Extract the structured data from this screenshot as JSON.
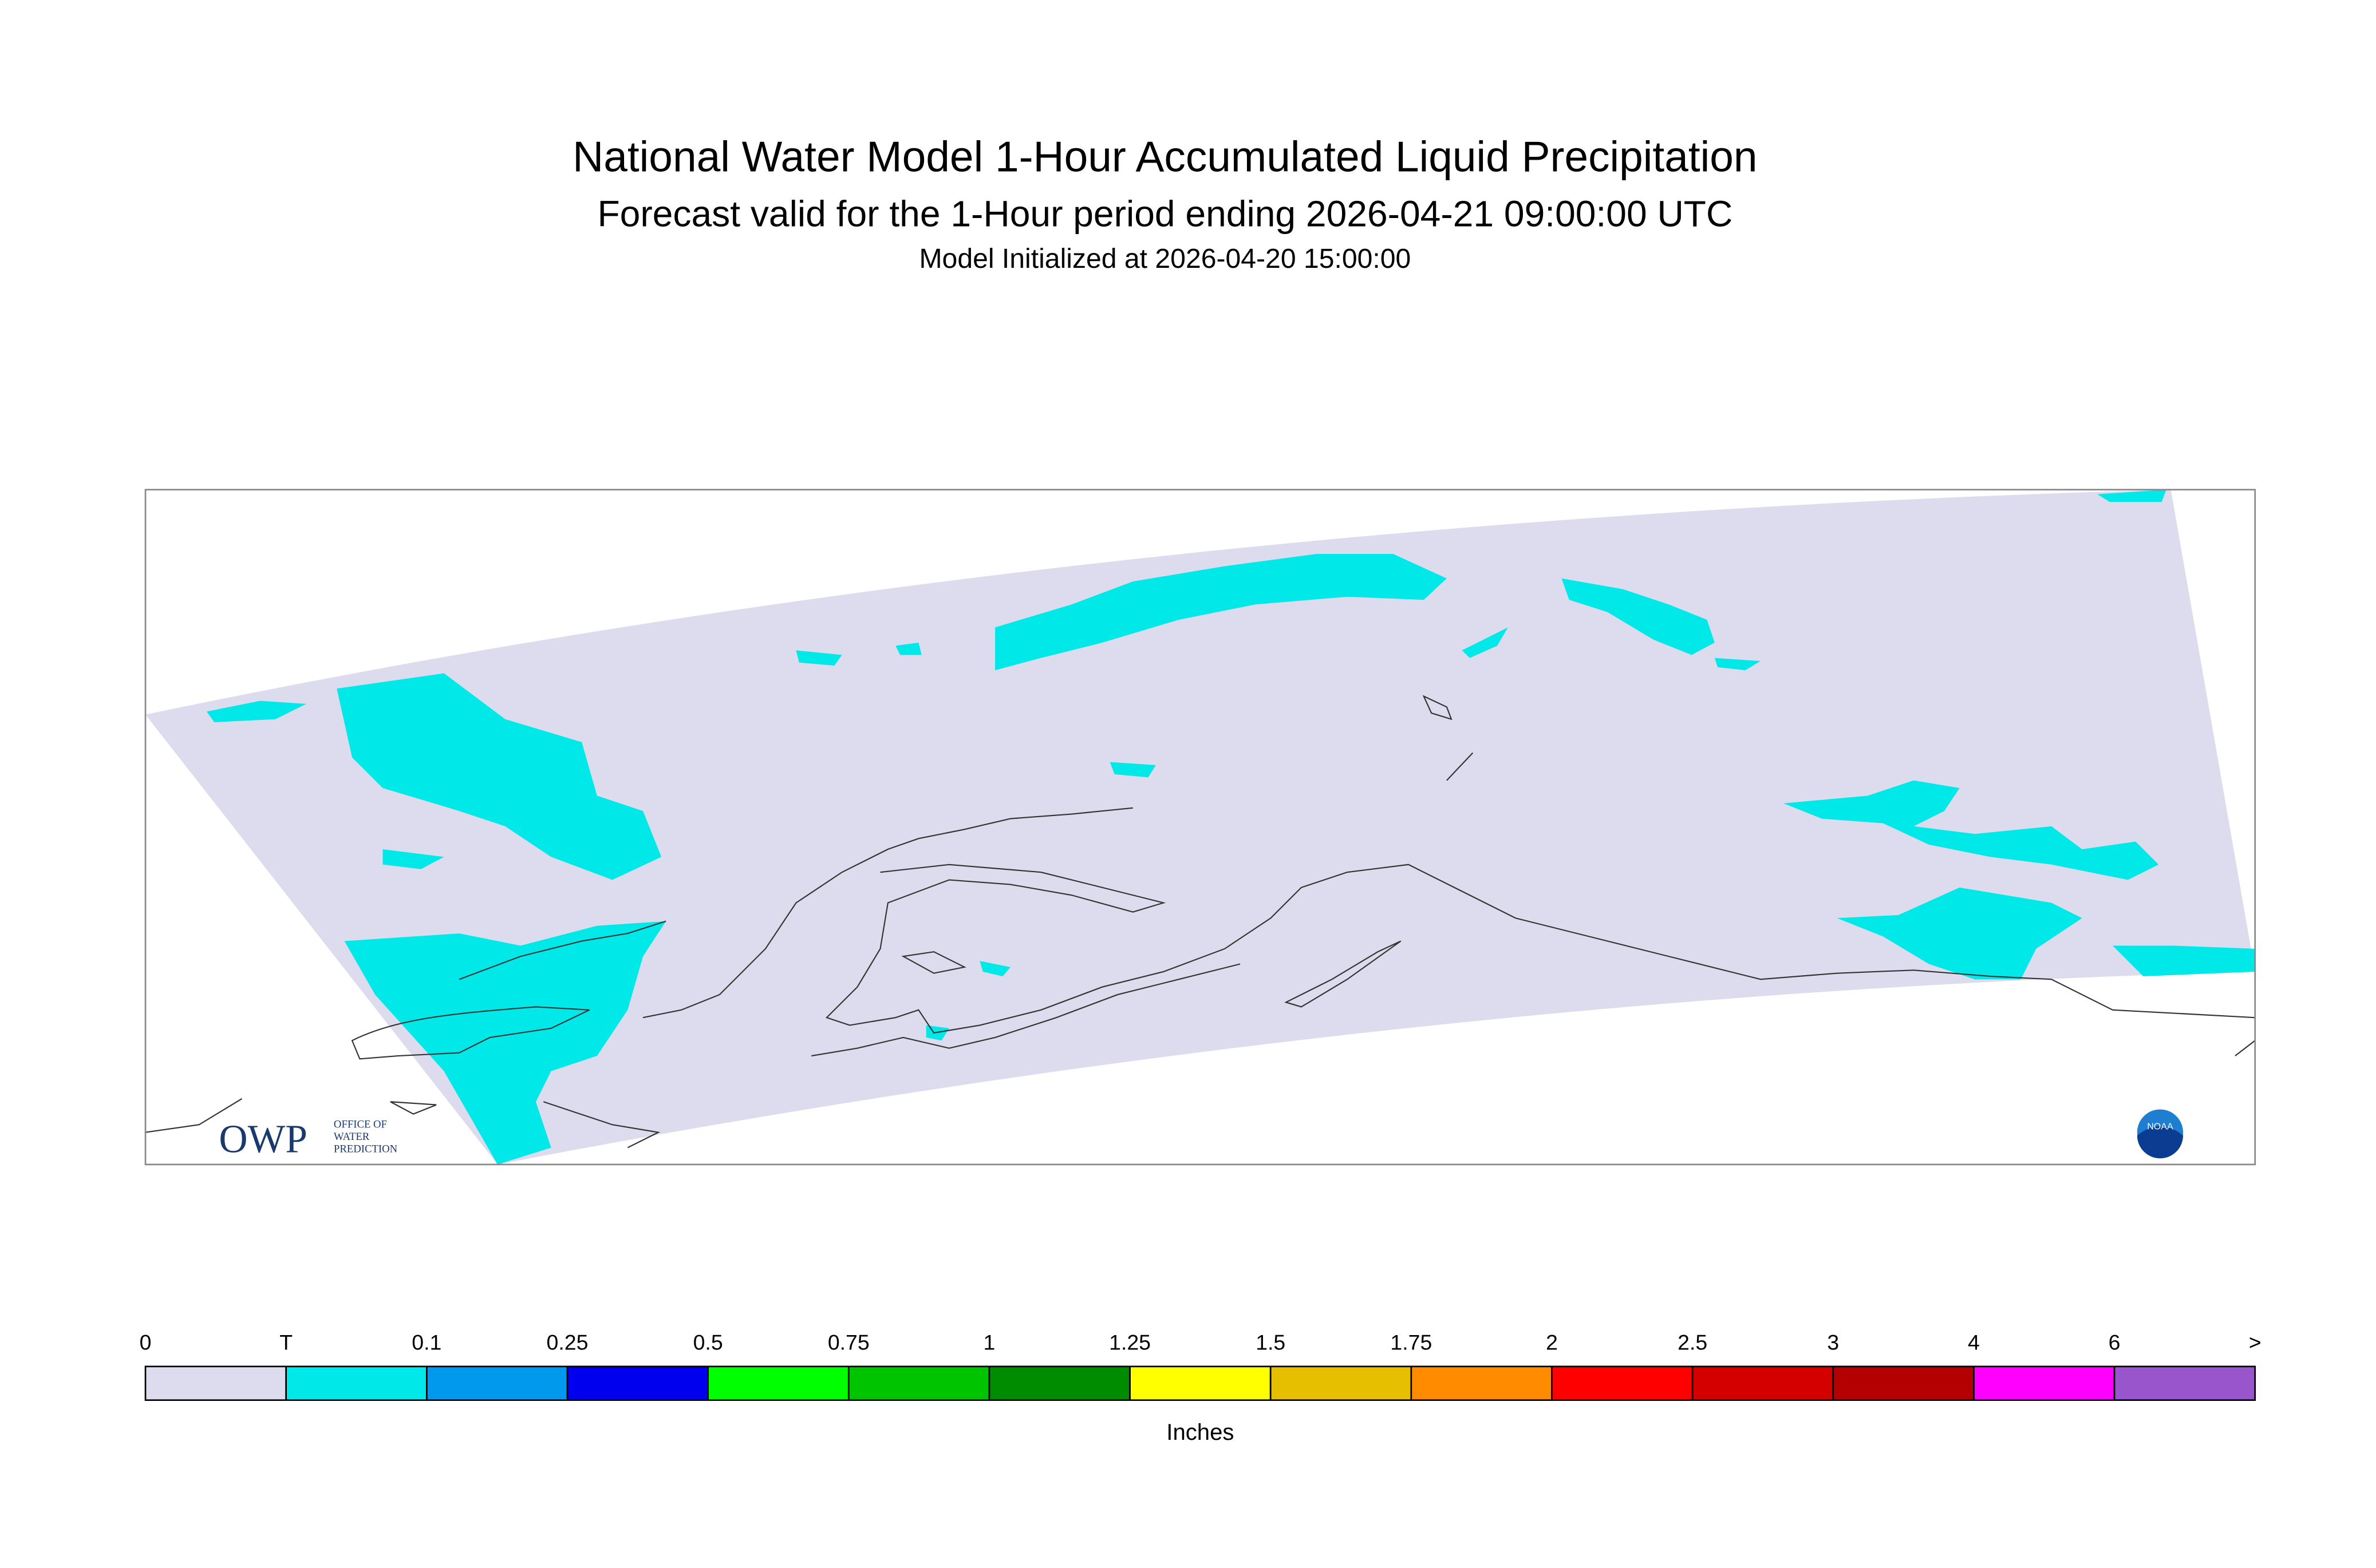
{
  "header": {
    "title": "National Water Model 1-Hour Accumulated Liquid Precipitation",
    "subtitle": "Forecast valid for the 1-Hour period ending 2026-04-21 09:00:00 UTC",
    "initialized": "Model Initialized at 2026-04-20 15:00:00"
  },
  "legend": {
    "labels": [
      "0",
      "T",
      "0.1",
      "0.25",
      "0.5",
      "0.75",
      "1",
      "1.25",
      "1.5",
      "1.75",
      "2",
      "2.5",
      "3",
      "4",
      "6",
      ">"
    ],
    "colors": [
      "#dcdcee",
      "#00e8e8",
      "#0099ee",
      "#0000ee",
      "#00ff00",
      "#00c400",
      "#008c00",
      "#ffff00",
      "#e6bf00",
      "#ff8c00",
      "#ff0000",
      "#d40000",
      "#b40000",
      "#ff00ff",
      "#9955cc"
    ],
    "unit": "Inches"
  },
  "logos": {
    "owp": "OWP",
    "owp_text": [
      "OFFICE OF",
      "WATER",
      "PREDICTION"
    ],
    "noaa": "NOAA"
  }
}
